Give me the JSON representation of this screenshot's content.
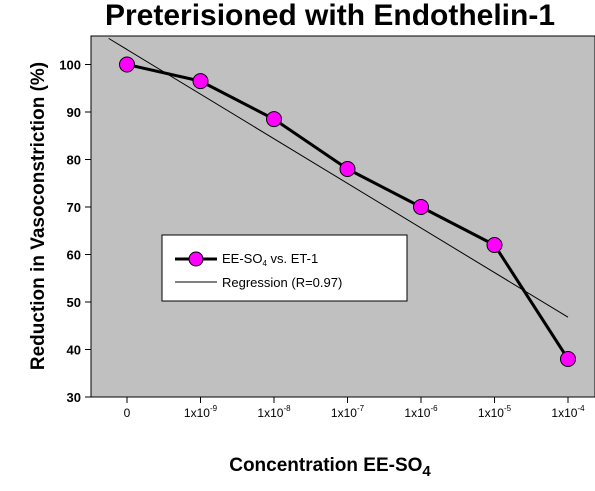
{
  "chart_data": {
    "type": "line",
    "title": "Preterisioned with Endothelin-1",
    "xlabel": "Concentration EE-SO4",
    "ylabel": "Reduction in Vasoconstriction (%)",
    "categories": [
      "0",
      "1x10-9",
      "1x10-8",
      "1x10-7",
      "1x10-6",
      "1x10-5",
      "1x10-4"
    ],
    "category_ticks": [
      {
        "base": "0",
        "exp": ""
      },
      {
        "base": "1x10",
        "exp": "-9"
      },
      {
        "base": "1x10",
        "exp": "-8"
      },
      {
        "base": "1x10",
        "exp": "-7"
      },
      {
        "base": "1x10",
        "exp": "-6"
      },
      {
        "base": "1x10",
        "exp": "-5"
      },
      {
        "base": "1x10",
        "exp": "-4"
      }
    ],
    "ylim": [
      30,
      106
    ],
    "yticks": [
      30,
      40,
      50,
      60,
      70,
      80,
      90,
      100
    ],
    "series": [
      {
        "name": "EE-SO4 vs. ET-1",
        "values": [
          100,
          96.5,
          88.5,
          78,
          70,
          62,
          38
        ],
        "marker": "circle",
        "marker_color": "#ff00ff",
        "line_color": "#000000"
      },
      {
        "name": "Regression (R=0.97)",
        "line_start": [
          -0.25,
          105.5
        ],
        "line_end": [
          6.0,
          46.8
        ],
        "line_color": "#000000"
      }
    ],
    "legend": {
      "placement": "center-left",
      "series_label_base": "EE-SO",
      "series_label_sub": "4",
      "series_label_rest": " vs. ET-1",
      "regression_label": "Regression (R=0.97)"
    },
    "xlabel_parts": {
      "base": "Concentration EE-SO",
      "sub": "4"
    },
    "plot_background": "#c0c0c0",
    "grid": false
  }
}
